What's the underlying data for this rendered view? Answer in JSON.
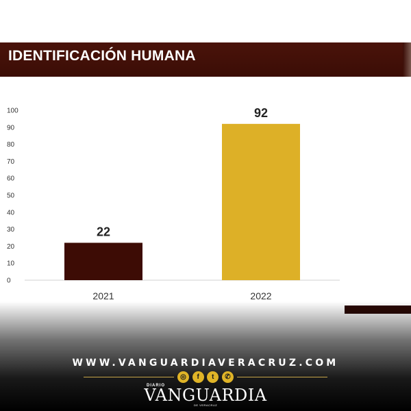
{
  "header": {
    "title": "IDENTIFICACIÓN HUMANA"
  },
  "chart_data": {
    "type": "bar",
    "categories": [
      "2021",
      "2022"
    ],
    "values": [
      22,
      92
    ],
    "data_labels": [
      "22",
      "92"
    ],
    "bar_colors": [
      "#3d0c05",
      "#ddb027"
    ],
    "ylim": [
      0,
      100
    ],
    "yticks": [
      "0",
      "10",
      "20",
      "30",
      "40",
      "50",
      "60",
      "70",
      "80",
      "90",
      "100"
    ],
    "title": "",
    "xlabel": "",
    "ylabel": "",
    "grid": false,
    "legend": "none"
  },
  "footer": {
    "website": "WWW.VANGUARDIAVERACRUZ.COM",
    "social_icons": [
      "instagram-icon",
      "facebook-icon",
      "twitter-icon",
      "whatsapp-icon"
    ],
    "social_glyphs": [
      "◎",
      "f",
      "t",
      "✆"
    ],
    "brand_prefix": "DIARIO",
    "brand_name": "VANGUARDIA",
    "brand_suffix": "DE VERACRUZ"
  },
  "colors": {
    "header_bg": "#3b0d06",
    "accent_gold": "#ddb027"
  }
}
